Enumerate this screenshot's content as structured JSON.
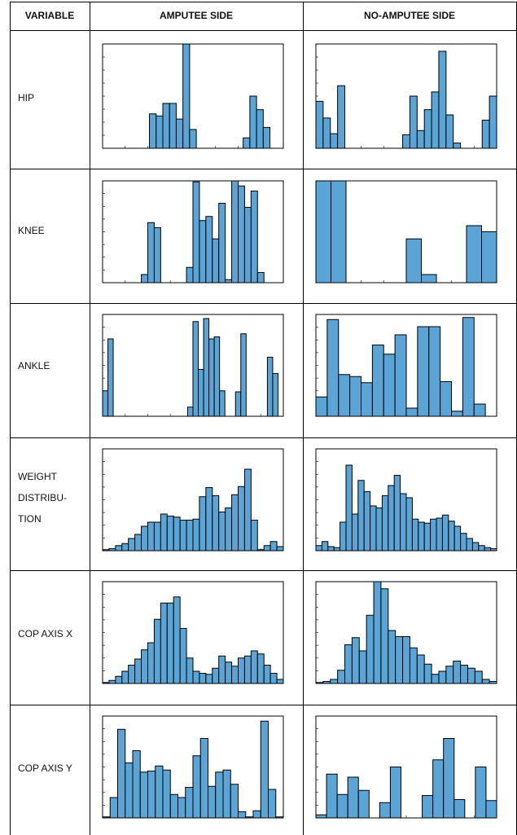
{
  "headers": {
    "variable": "VARIABLE",
    "amputee": "AMPUTEE SIDE",
    "no_amputee": "NO-AMPUTEE SIDE"
  },
  "rows": [
    {
      "label": "HIP"
    },
    {
      "label": "KNEE"
    },
    {
      "label": "ANKLE"
    },
    {
      "label": "WEIGHT DISTRIBU- TION",
      "lines": [
        "WEIGHT",
        "DISTRIBU-",
        "TION"
      ]
    },
    {
      "label": "COP AXIS X"
    },
    {
      "label": "COP AXIS Y"
    }
  ],
  "colors": {
    "bar_fill": "#5aa5d6",
    "bar_stroke": "#000000",
    "frame": "#000000"
  },
  "chart_data": [
    {
      "type": "bar",
      "row": "HIP",
      "side": "amputee",
      "ylim": [
        0,
        1
      ],
      "values": [
        0,
        0,
        0,
        0,
        0,
        0,
        0,
        0.33,
        0.31,
        0.43,
        0.43,
        0.28,
        1,
        0.18,
        0,
        0,
        0,
        0,
        0,
        0,
        0,
        0.1,
        0.5,
        0.37,
        0.2,
        0,
        0
      ]
    },
    {
      "type": "bar",
      "row": "HIP",
      "side": "no_amputee",
      "ylim": [
        0,
        1
      ],
      "values": [
        0.45,
        0.29,
        0.14,
        0.6,
        0,
        0,
        0,
        0,
        0,
        0,
        0,
        0,
        0.13,
        0.5,
        0.17,
        0.37,
        0.54,
        0.93,
        0.32,
        0.05,
        0,
        0,
        0,
        0.27,
        0.5
      ]
    },
    {
      "type": "bar",
      "row": "KNEE",
      "side": "amputee",
      "ylim": [
        0,
        1
      ],
      "values": [
        0,
        0,
        0,
        0,
        0,
        0,
        0.08,
        0.59,
        0.54,
        0,
        0,
        0,
        0,
        0.15,
        0.99,
        0.61,
        0.65,
        0.43,
        0.78,
        0.03,
        1,
        0.95,
        0.74,
        0.9,
        0.1,
        0,
        0,
        0
      ]
    },
    {
      "type": "bar",
      "row": "KNEE",
      "side": "no_amputee",
      "ylim": [
        0,
        1
      ],
      "values": [
        1,
        1,
        0,
        0,
        0,
        0,
        0.43,
        0.08,
        0,
        0,
        0.56,
        0.5
      ]
    },
    {
      "type": "bar",
      "row": "ANKLE",
      "side": "amputee",
      "ylim": [
        0,
        1
      ],
      "values": [
        0.25,
        0.76,
        0,
        0,
        0,
        0,
        0,
        0,
        0,
        0,
        0,
        0,
        0,
        0,
        0,
        0,
        0.09,
        0.93,
        0.46,
        0.96,
        0.76,
        0.78,
        0.25,
        0,
        0,
        0.24,
        0.81,
        0,
        0,
        0,
        0,
        0.58,
        0.42,
        0
      ]
    },
    {
      "type": "bar",
      "row": "ANKLE",
      "side": "no_amputee",
      "ylim": [
        0,
        1
      ],
      "values": [
        0.19,
        0.95,
        0.41,
        0.39,
        0.33,
        0.7,
        0.61,
        0.8,
        0.08,
        0.88,
        0.88,
        0.34,
        0.05,
        0.97,
        0.12,
        0
      ]
    },
    {
      "type": "bar",
      "row": "WEIGHT DISTRIBUTION",
      "side": "amputee",
      "ylim": [
        0,
        1
      ],
      "values": [
        0.01,
        0.02,
        0.05,
        0.07,
        0.12,
        0.16,
        0.24,
        0.28,
        0.28,
        0.36,
        0.34,
        0.33,
        0.3,
        0.3,
        0.31,
        0.53,
        0.62,
        0.54,
        0.38,
        0.42,
        0.55,
        0.63,
        0.8,
        0.3,
        0.01,
        0.05,
        0.09,
        0.04
      ]
    },
    {
      "type": "bar",
      "row": "WEIGHT DISTRIBUTION",
      "side": "no_amputee",
      "ylim": [
        0,
        1
      ],
      "values": [
        0.05,
        0.09,
        0.04,
        0.03,
        0.28,
        0.84,
        0.36,
        0.69,
        0.58,
        0.44,
        0.42,
        0.54,
        0.64,
        0.74,
        0.56,
        0.52,
        0.31,
        0.28,
        0.27,
        0.31,
        0.32,
        0.35,
        0.29,
        0.24,
        0.17,
        0.12,
        0.08,
        0.05,
        0.03,
        0.02
      ]
    },
    {
      "type": "bar",
      "row": "COP AXIS X",
      "side": "amputee",
      "ylim": [
        0,
        1
      ],
      "values": [
        0.01,
        0.03,
        0.07,
        0.12,
        0.18,
        0.24,
        0.33,
        0.4,
        0.63,
        0.79,
        0.79,
        0.85,
        0.54,
        0.25,
        0.12,
        0.1,
        0.09,
        0.15,
        0.27,
        0.21,
        0.17,
        0.25,
        0.27,
        0.32,
        0.29,
        0.18,
        0.1,
        0.04
      ]
    },
    {
      "type": "bar",
      "row": "COP AXIS X",
      "side": "no_amputee",
      "ylim": [
        0,
        1
      ],
      "values": [
        0.01,
        0.02,
        0.04,
        0.13,
        0.38,
        0.45,
        0.32,
        0.67,
        1,
        0.93,
        0.52,
        0.46,
        0.46,
        0.35,
        0.28,
        0.19,
        0.09,
        0.12,
        0.17,
        0.22,
        0.18,
        0.15,
        0.12,
        0.04,
        0.02
      ]
    },
    {
      "type": "bar",
      "row": "COP AXIS Y",
      "side": "amputee",
      "ylim": [
        0,
        1
      ],
      "values": [
        0.01,
        0.2,
        0.87,
        0.54,
        0.66,
        0.45,
        0.46,
        0.51,
        0.47,
        0.23,
        0.2,
        0.3,
        0.61,
        0.78,
        0.31,
        0.45,
        0.47,
        0.33,
        0.06,
        0.01,
        0.07,
        0.95,
        0.28,
        0.01
      ]
    },
    {
      "type": "bar",
      "row": "COP AXIS Y",
      "side": "no_amputee",
      "ylim": [
        0,
        1
      ],
      "values": [
        0.03,
        0.43,
        0.23,
        0.4,
        0.27,
        0,
        0.15,
        0.5,
        0,
        0,
        0.22,
        0.57,
        0.78,
        0.18,
        0,
        0.5,
        0.17
      ]
    }
  ]
}
